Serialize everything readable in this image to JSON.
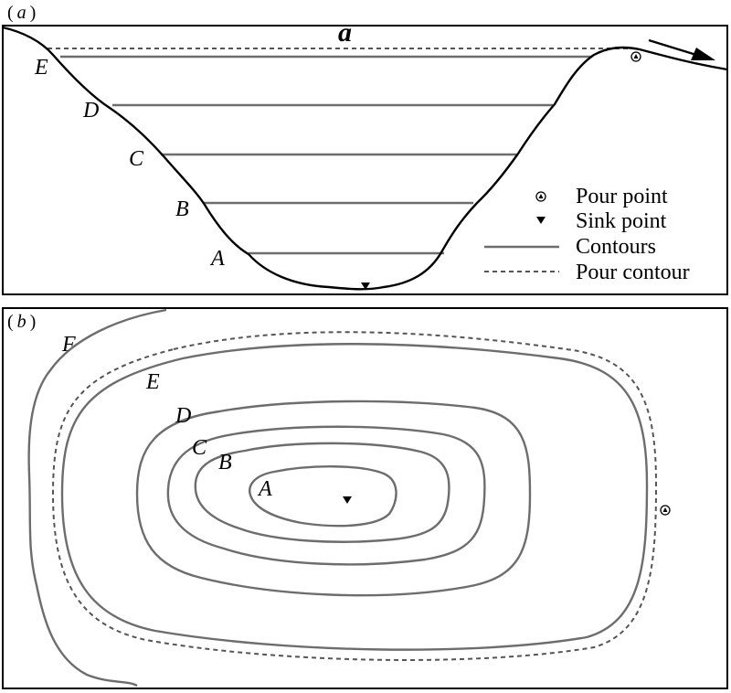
{
  "panel_a": {
    "label_paren_open": "(",
    "label_letter": "a",
    "label_paren_close": ")",
    "title": "a",
    "contour_labels": [
      "E",
      "D",
      "C",
      "B",
      "A"
    ]
  },
  "panel_b": {
    "label_paren_open": "(",
    "label_letter": "b",
    "label_paren_close": ")",
    "contour_labels": [
      "F",
      "E",
      "D",
      "C",
      "B",
      "A"
    ]
  },
  "legend": {
    "pour_point": "Pour point",
    "sink_point": "Sink point",
    "contours": "Contours",
    "pour_contour": "Pour contour"
  },
  "colors": {
    "contour": "#6d6d6d",
    "pour_contour": "#555555",
    "terrain": "#000000"
  }
}
